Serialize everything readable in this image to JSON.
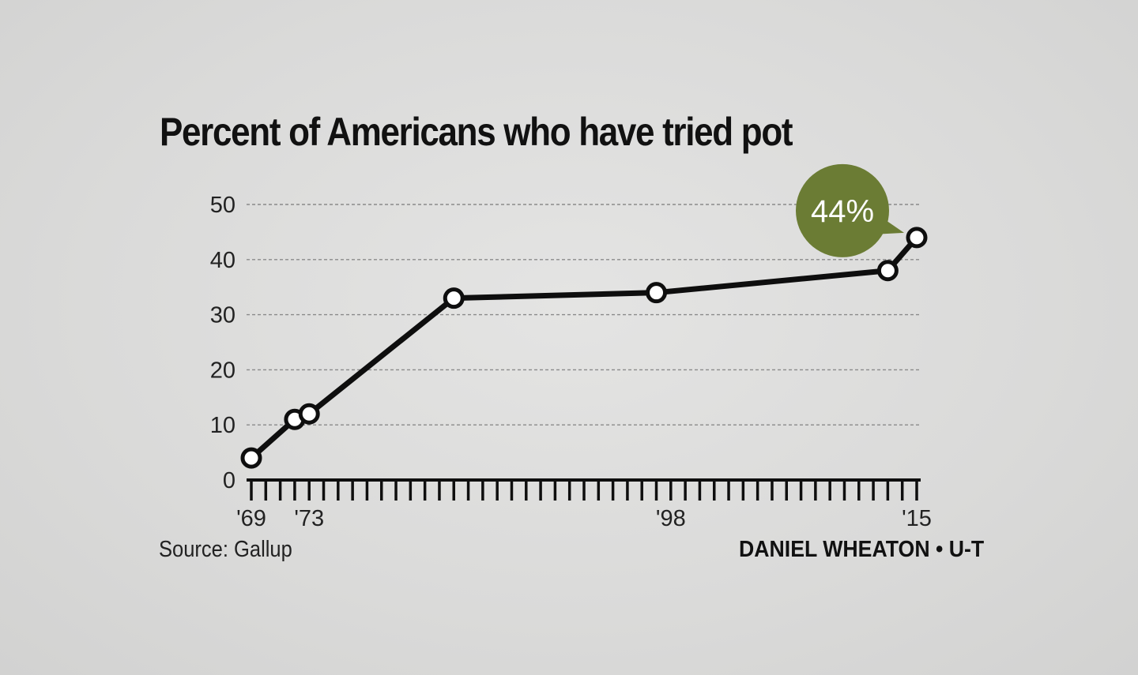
{
  "chart_data": {
    "type": "line",
    "title": "Percent of Americans who have tried pot",
    "xlabel": "",
    "ylabel": "",
    "ylim": [
      0,
      50
    ],
    "xlim": [
      1969,
      2015
    ],
    "y_ticks": [
      0,
      10,
      20,
      30,
      40,
      50
    ],
    "x_tick_labels": [
      {
        "year": 1969,
        "label": "'69"
      },
      {
        "year": 1973,
        "label": "'73"
      },
      {
        "year": 1998,
        "label": "'98"
      },
      {
        "year": 2015,
        "label": "'15"
      }
    ],
    "grid": true,
    "series": [
      {
        "values": [
          {
            "x": 1969,
            "y": 4
          },
          {
            "x": 1972,
            "y": 11
          },
          {
            "x": 1973,
            "y": 12
          },
          {
            "x": 1983,
            "y": 33
          },
          {
            "x": 1997,
            "y": 34
          },
          {
            "x": 2013,
            "y": 38
          },
          {
            "x": 2015,
            "y": 44
          }
        ]
      }
    ],
    "annotation": {
      "text": "44%",
      "x": 2015,
      "y": 44
    }
  },
  "colors": {
    "line": "#0e0e0e",
    "marker_fill": "#ffffff",
    "badge": "#6b7c34",
    "grid": "#8a8a8a"
  },
  "source": "Source: Gallup",
  "credit": "DANIEL WHEATON • U-T"
}
